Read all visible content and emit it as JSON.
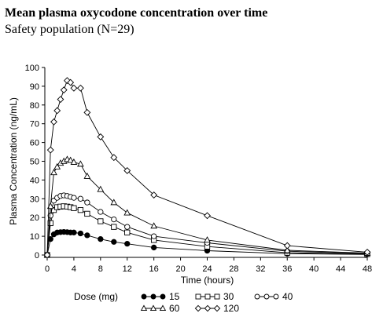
{
  "header": {
    "title": "Mean plasma oxycodone concentration over time",
    "subtitle": "Safety population (N=29)"
  },
  "chart_data": {
    "type": "line",
    "xlabel": "Time (hours)",
    "ylabel": "Plasma Concentration (ng/mL)",
    "xlim": [
      0,
      48
    ],
    "ylim": [
      0,
      100
    ],
    "xticks": [
      0,
      4,
      8,
      12,
      16,
      20,
      24,
      28,
      32,
      36,
      40,
      44,
      48
    ],
    "yticks": [
      0,
      10,
      20,
      30,
      40,
      50,
      60,
      70,
      80,
      90,
      100
    ],
    "grid": false,
    "legend": {
      "title": "Dose (mg)",
      "placement": "bottom"
    },
    "series": [
      {
        "name": "15",
        "marker": "filled-circle",
        "x": [
          0,
          0.5,
          1,
          1.5,
          2,
          2.5,
          3,
          3.5,
          4,
          5,
          6,
          8,
          10,
          12,
          16,
          24,
          36,
          48
        ],
        "values": [
          0,
          8.5,
          11,
          12,
          12.2,
          12.3,
          12.2,
          12,
          12,
          11.5,
          10.5,
          8.5,
          7,
          6,
          4,
          2.3,
          0.7,
          0.3
        ]
      },
      {
        "name": "30",
        "marker": "open-square",
        "x": [
          0,
          0.5,
          1,
          1.5,
          2,
          2.5,
          3,
          3.5,
          4,
          5,
          6,
          8,
          10,
          12,
          16,
          24,
          36,
          48
        ],
        "values": [
          0,
          17,
          24,
          25.5,
          25.8,
          26,
          25.8,
          25.5,
          25,
          24,
          22,
          18,
          15,
          12,
          8,
          4.5,
          1.2,
          0.5
        ]
      },
      {
        "name": "40",
        "marker": "open-circle",
        "x": [
          0,
          0.5,
          1,
          1.5,
          2,
          2.5,
          3,
          3.5,
          4,
          5,
          6,
          8,
          10,
          12,
          16,
          24,
          36,
          48
        ],
        "values": [
          0,
          21,
          29,
          30.5,
          31.5,
          31.8,
          31.5,
          31,
          30.5,
          30,
          28,
          23,
          19,
          15,
          10,
          6.5,
          2,
          0.8
        ]
      },
      {
        "name": "60",
        "marker": "open-triangle",
        "x": [
          0,
          0.5,
          1,
          1.5,
          2,
          2.5,
          3,
          3.5,
          4,
          5,
          6,
          8,
          10,
          12,
          16,
          24,
          36,
          48
        ],
        "values": [
          0,
          26,
          44,
          47,
          49,
          50,
          51,
          50.5,
          49.5,
          48.5,
          42,
          35,
          28,
          22.5,
          15.5,
          8,
          2.5,
          1
        ]
      },
      {
        "name": "120",
        "marker": "open-diamond",
        "x": [
          0,
          0.5,
          1,
          1.5,
          2,
          2.5,
          3,
          3.5,
          4,
          5,
          6,
          8,
          10,
          12,
          16,
          24,
          36,
          48
        ],
        "values": [
          0,
          56,
          71,
          77,
          83,
          88,
          93,
          92,
          89,
          89,
          76,
          63,
          52,
          45,
          32,
          21,
          5,
          1.5
        ]
      }
    ]
  }
}
